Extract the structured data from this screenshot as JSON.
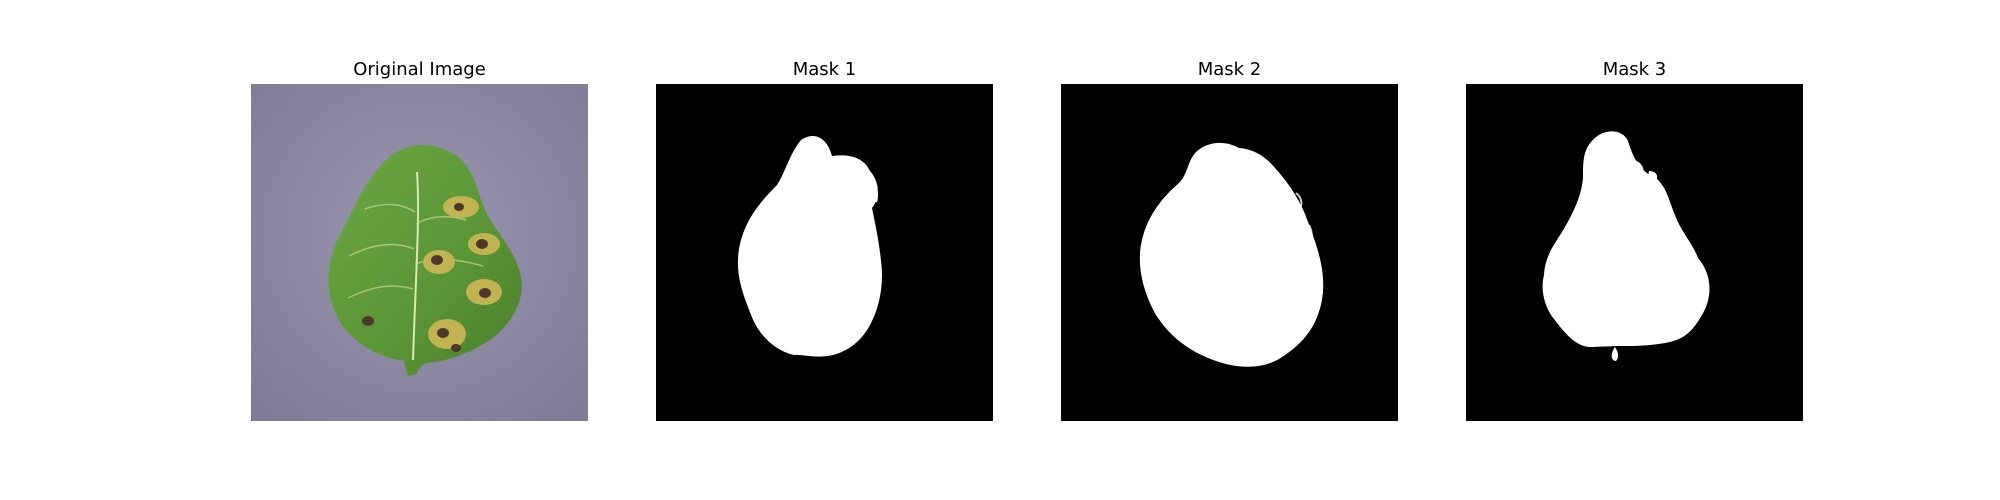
{
  "panels": [
    {
      "title": "Original Image",
      "content": "leaf-photo"
    },
    {
      "title": "Mask 1",
      "content": "binary-mask"
    },
    {
      "title": "Mask 2",
      "content": "binary-mask"
    },
    {
      "title": "Mask 3",
      "content": "binary-mask"
    }
  ],
  "colors": {
    "background": "#ffffff",
    "mask_background": "#000000",
    "mask_foreground": "#ffffff",
    "leaf_green": "#5f9a3a",
    "leaf_yellow": "#c7b454",
    "lesion": "#4b3a2b",
    "photo_background": "#8e89a2"
  }
}
